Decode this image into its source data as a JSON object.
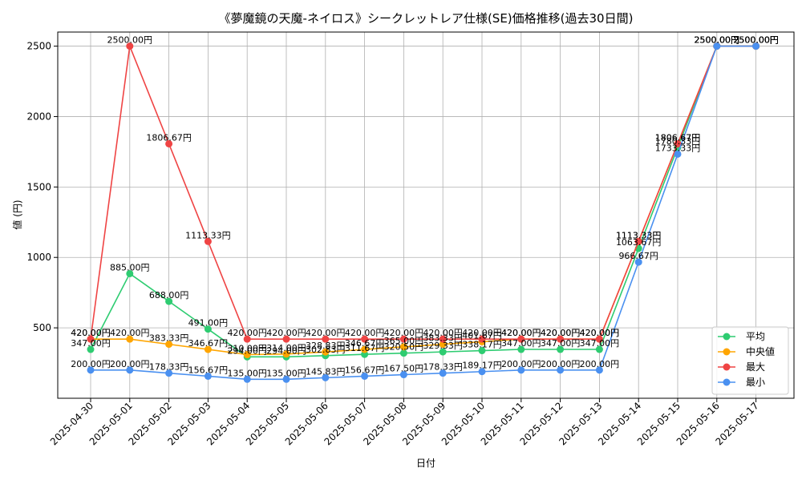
{
  "chart_data": {
    "type": "line",
    "title": "《夢魔鏡の天魔-ネイロス》シークレットレア仕様(SE)価格推移(過去30日間)",
    "xlabel": "日付",
    "ylabel": "値 (円)",
    "categories": [
      "2025-04-30",
      "2025-05-01",
      "2025-05-02",
      "2025-05-03",
      "2025-05-04",
      "2025-05-05",
      "2025-05-06",
      "2025-05-07",
      "2025-05-08",
      "2025-05-09",
      "2025-05-10",
      "2025-05-11",
      "2025-05-12",
      "2025-05-13",
      "2025-05-14",
      "2025-05-15",
      "2025-05-16",
      "2025-05-17"
    ],
    "ylim": [
      0,
      2600
    ],
    "yticks": [
      500,
      1000,
      1500,
      2000,
      2500
    ],
    "grid": true,
    "legend_position": "lower-right",
    "value_suffix": "円",
    "series": [
      {
        "name": "平均",
        "color": "#2ecc71",
        "values": [
          347.0,
          885.0,
          688.0,
          491.0,
          294.0,
          294.0,
          302.83,
          311.67,
          320.5,
          329.33,
          338.17,
          347.0,
          347.0,
          347.0,
          1063.67,
          1780.33,
          2500.0,
          2500.0
        ]
      },
      {
        "name": "中央値",
        "color": "#ffa500",
        "values": [
          420.0,
          420.0,
          383.33,
          346.67,
          310.0,
          314.0,
          328.83,
          346.67,
          365.0,
          383.33,
          401.67,
          420.0,
          420.0,
          420.0,
          1113.33,
          1806.67,
          2500.0,
          2500.0
        ]
      },
      {
        "name": "最大",
        "color": "#ef4444",
        "values": [
          420.0,
          2500.0,
          1806.67,
          1113.33,
          420.0,
          420.0,
          420.0,
          420.0,
          420.0,
          420.0,
          420.0,
          420.0,
          420.0,
          420.0,
          1113.33,
          1806.67,
          2500.0,
          2500.0
        ]
      },
      {
        "name": "最小",
        "color": "#4a90f0",
        "values": [
          200.0,
          200.0,
          178.33,
          156.67,
          135.0,
          135.0,
          145.83,
          156.67,
          167.5,
          178.33,
          189.17,
          200.0,
          200.0,
          200.0,
          966.67,
          1733.33,
          2500.0,
          2500.0
        ]
      }
    ]
  }
}
